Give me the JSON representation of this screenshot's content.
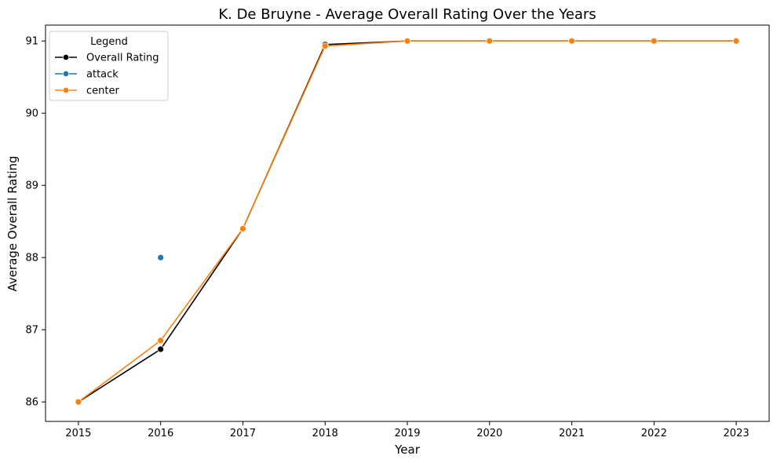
{
  "chart_data": {
    "type": "line",
    "title": "K. De Bruyne - Average Overall Rating Over the Years",
    "xlabel": "Year",
    "ylabel": "Average Overall Rating",
    "x": [
      2015,
      2016,
      2017,
      2018,
      2019,
      2020,
      2021,
      2022,
      2023
    ],
    "x_ticks": [
      "2015",
      "2016",
      "2017",
      "2018",
      "2019",
      "2020",
      "2021",
      "2022",
      "2023"
    ],
    "y_ticks": [
      "86",
      "87",
      "88",
      "89",
      "90",
      "91"
    ],
    "ylim": [
      85.73,
      91.22
    ],
    "grid": false,
    "legend": {
      "title": "Legend",
      "placement": "top-left"
    },
    "series": [
      {
        "name": "Overall Rating",
        "color": "#000000",
        "x": [
          2015,
          2016,
          2017,
          2018,
          2019,
          2020,
          2021,
          2022,
          2023
        ],
        "values": [
          86.0,
          86.73,
          88.4,
          90.95,
          91.0,
          91.0,
          91.0,
          91.0,
          91.0
        ]
      },
      {
        "name": "attack",
        "color": "#1f77b4",
        "x": [
          2016
        ],
        "values": [
          88.0
        ]
      },
      {
        "name": "center",
        "color": "#ff7f0e",
        "x": [
          2015,
          2016,
          2017,
          2018,
          2019,
          2020,
          2021,
          2022,
          2023
        ],
        "values": [
          86.0,
          86.85,
          88.4,
          90.93,
          91.0,
          91.0,
          91.0,
          91.0,
          91.0
        ]
      }
    ]
  }
}
